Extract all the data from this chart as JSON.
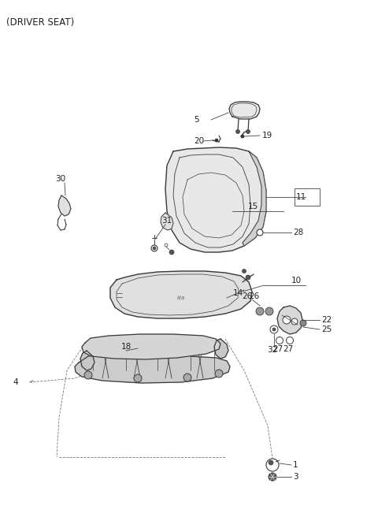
{
  "title": "(DRIVER SEAT)",
  "bg_color": "#ffffff",
  "line_color": "#3a3a3a",
  "label_color": "#222222",
  "font_size": 7.5,
  "title_font_size": 8.5,
  "figsize": [
    4.8,
    6.56
  ],
  "dpi": 100
}
